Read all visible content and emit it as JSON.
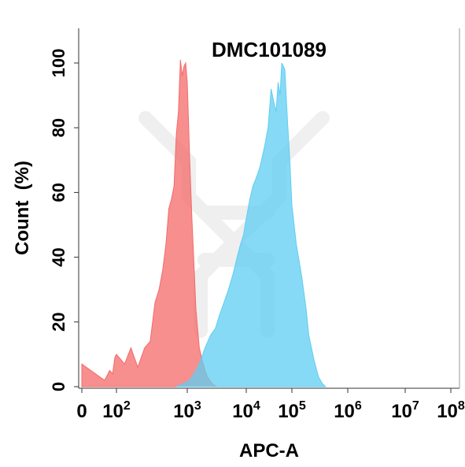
{
  "chart_data": {
    "type": "area",
    "title": "DMC101089",
    "xlabel": "APC-A",
    "ylabel": "Count  (%)",
    "x_scale": "biexponential",
    "xlim": [
      0,
      100000000
    ],
    "ylim": [
      0,
      110
    ],
    "y_ticks": [
      0,
      20,
      40,
      60,
      80,
      100
    ],
    "x_ticks": [
      {
        "base": "0",
        "exp": ""
      },
      {
        "base": "10",
        "exp": "2"
      },
      {
        "base": "10",
        "exp": "3"
      },
      {
        "base": "10",
        "exp": "4"
      },
      {
        "base": "10",
        "exp": "5"
      },
      {
        "base": "10",
        "exp": "6"
      },
      {
        "base": "10",
        "exp": "7"
      },
      {
        "base": "10",
        "exp": "8"
      }
    ],
    "x_tick_values": [
      0,
      100,
      1000,
      10000,
      100000,
      1000000,
      10000000,
      100000000
    ],
    "grid": false,
    "series": [
      {
        "color": "#f46a6a",
        "x": [
          0,
          10,
          20,
          40,
          60,
          80,
          100,
          130,
          160,
          200,
          250,
          300,
          350,
          400,
          450,
          500,
          550,
          600,
          650,
          700,
          750,
          800,
          850,
          900,
          950,
          1000,
          1100,
          1200,
          1300,
          1400,
          1600,
          1800,
          2000,
          2200,
          2500,
          2800,
          3200
        ],
        "y": [
          7,
          3,
          2,
          5,
          4,
          9,
          10,
          7,
          12,
          6,
          12,
          14,
          26,
          30,
          36,
          44,
          55,
          58,
          62,
          78,
          85,
          101,
          96,
          99,
          100,
          94,
          70,
          52,
          38,
          24,
          12,
          8,
          5,
          3,
          1.5,
          0.5,
          0
        ]
      },
      {
        "color": "#5fcdf2",
        "x": [
          700,
          900,
          1100,
          1300,
          1600,
          2000,
          2500,
          3000,
          3500,
          4000,
          5000,
          6000,
          7000,
          8000,
          9000,
          10000,
          12000,
          14000,
          16000,
          18000,
          20000,
          25000,
          30000,
          35000,
          40000,
          45000,
          50000,
          55000,
          60000,
          70000,
          80000,
          90000,
          100000,
          120000,
          150000,
          180000,
          200000,
          250000,
          300000,
          350000,
          400000
        ],
        "y": [
          0,
          1,
          2,
          4,
          7,
          12,
          16,
          18,
          22,
          25,
          30,
          35,
          40,
          44,
          47,
          52,
          58,
          62,
          64,
          66,
          68,
          74,
          80,
          92,
          88,
          85,
          94,
          90,
          100,
          98,
          82,
          70,
          56,
          44,
          34,
          24,
          16,
          8,
          3,
          1,
          0
        ]
      }
    ]
  }
}
